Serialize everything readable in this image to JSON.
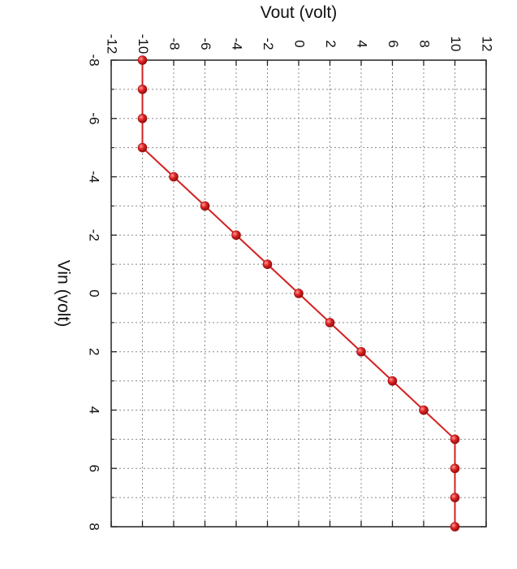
{
  "chart_data": {
    "type": "line",
    "orientation": "rotated-90-clockwise",
    "title": "",
    "xlabel": "Vin (volt)",
    "ylabel": "Vout (volt)",
    "xlim": [
      -8,
      8
    ],
    "ylim": [
      -12,
      12
    ],
    "x_ticks": [
      "-8",
      "-6",
      "-4",
      "-2",
      "0",
      "2",
      "4",
      "6",
      "8"
    ],
    "y_ticks": [
      "-12",
      "-10",
      "-8",
      "-6",
      "-4",
      "-2",
      "0",
      "2",
      "4",
      "6",
      "8",
      "10",
      "12"
    ],
    "grid": true,
    "legend": "none",
    "series": [
      {
        "x": [
          -8,
          -7,
          -6,
          -5,
          -4,
          -3,
          -2,
          -1,
          0,
          1,
          2,
          3,
          4,
          5,
          6,
          7,
          8
        ],
        "y": [
          -10,
          -10,
          -10,
          -10,
          -8,
          -6,
          -4,
          -2,
          0,
          2,
          4,
          6,
          8,
          10,
          10,
          10,
          10
        ],
        "color": "#d42020",
        "marker": "sphere"
      }
    ]
  }
}
